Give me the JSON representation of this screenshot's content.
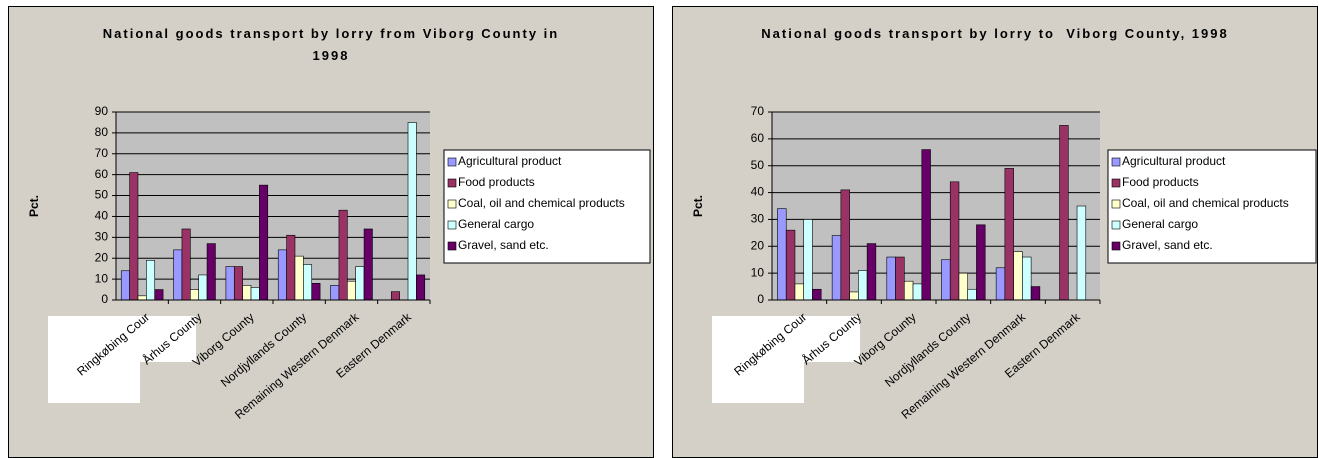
{
  "chart_data": [
    {
      "type": "bar",
      "title": "National goods transport by lorry from Viborg County in 1998",
      "y_label": "Pct.",
      "categories": [
        "Ringkøbing Cour",
        "Århus County",
        "Viborg County",
        "Nordjyllands County",
        "Remaining Western Denmark",
        "Eastern Denmark"
      ],
      "series": [
        {
          "name": "Agricultural product",
          "color": "#9999ff",
          "values": [
            14,
            24,
            16,
            24,
            7,
            0
          ]
        },
        {
          "name": "Food products",
          "color": "#993366",
          "values": [
            61,
            34,
            16,
            31,
            43,
            4
          ]
        },
        {
          "name": "Coal, oil and chemical products",
          "color": "#ffffcc",
          "values": [
            2,
            5,
            7,
            21,
            9,
            0
          ]
        },
        {
          "name": "General cargo",
          "color": "#ccffff",
          "values": [
            19,
            12,
            6,
            17,
            16,
            85
          ]
        },
        {
          "name": "Gravel, sand etc.",
          "color": "#660066",
          "values": [
            5,
            27,
            55,
            8,
            34,
            12
          ]
        }
      ],
      "ylim": [
        0,
        90
      ],
      "yticks": [
        0,
        10,
        20,
        30,
        40,
        50,
        60,
        70,
        80,
        90
      ],
      "grid": true
    },
    {
      "type": "bar",
      "title": "National goods transport by lorry to  Viborg County, 1998",
      "y_label": "Pct.",
      "categories": [
        "Ringkøbing Cour",
        "Århus County",
        "Viborg County",
        "Nordjyllands County",
        "Remaining Western Denmark",
        "Eastern Denmark"
      ],
      "series": [
        {
          "name": "Agricultural product",
          "color": "#9999ff",
          "values": [
            34,
            24,
            16,
            15,
            12,
            0
          ]
        },
        {
          "name": "Food products",
          "color": "#993366",
          "values": [
            26,
            41,
            16,
            44,
            49,
            65
          ]
        },
        {
          "name": "Coal, oil and chemical products",
          "color": "#ffffcc",
          "values": [
            6,
            3,
            7,
            10,
            18,
            0
          ]
        },
        {
          "name": "General cargo",
          "color": "#ccffff",
          "values": [
            30,
            11,
            6,
            4,
            16,
            35
          ]
        },
        {
          "name": "Gravel, sand etc.",
          "color": "#660066",
          "values": [
            4,
            21,
            56,
            28,
            5,
            0
          ]
        }
      ],
      "ylim": [
        0,
        70
      ],
      "yticks": [
        0,
        10,
        20,
        30,
        40,
        50,
        60,
        70
      ],
      "grid": true
    }
  ]
}
